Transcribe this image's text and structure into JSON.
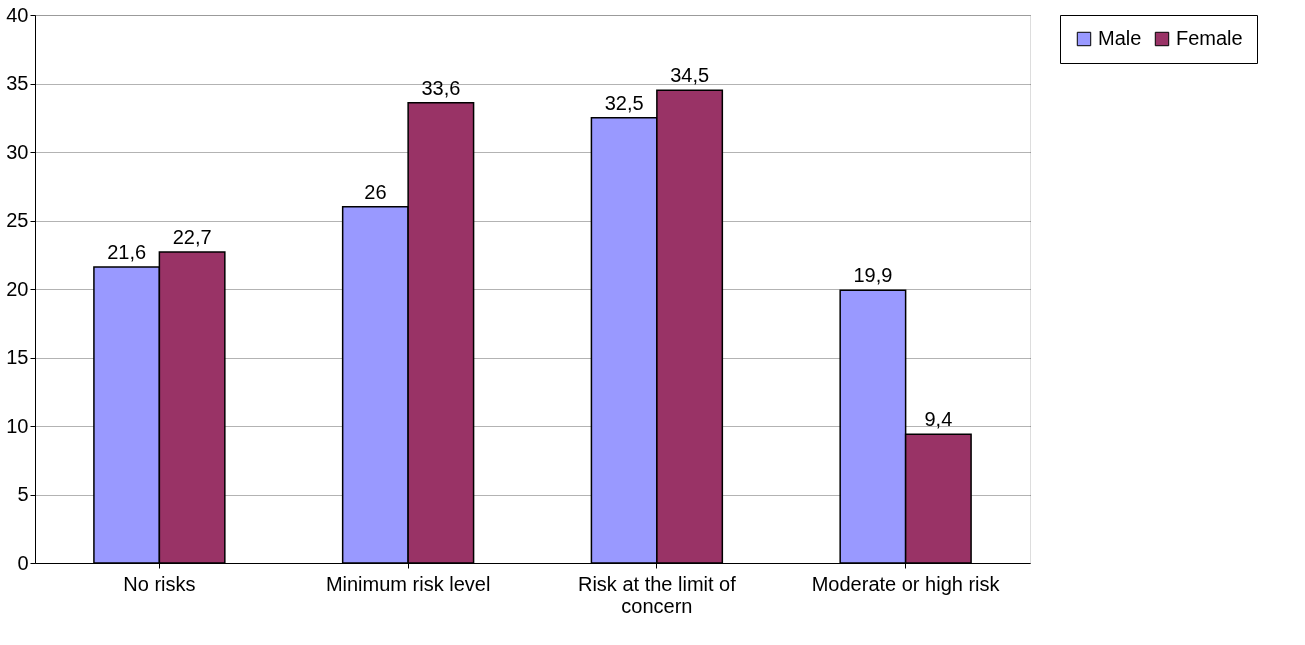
{
  "chart_data": {
    "type": "bar",
    "categories": [
      "No risks",
      "Minimum risk level",
      "Risk at the limit of concern",
      "Moderate or high risk"
    ],
    "series": [
      {
        "name": "Male",
        "color": "#9999ff",
        "values": [
          21.6,
          26,
          32.5,
          19.9
        ],
        "value_labels": [
          "21,6",
          "26",
          "32,5",
          "19,9"
        ]
      },
      {
        "name": "Female",
        "color": "#993366",
        "values": [
          22.7,
          33.6,
          34.5,
          9.4
        ],
        "value_labels": [
          "22,7",
          "33,6",
          "34,5",
          "9,4"
        ]
      }
    ],
    "ylim": [
      0,
      40
    ],
    "yticks": [
      0,
      5,
      10,
      15,
      20,
      25,
      30,
      35,
      40
    ],
    "grid": "y",
    "legend": "right"
  }
}
